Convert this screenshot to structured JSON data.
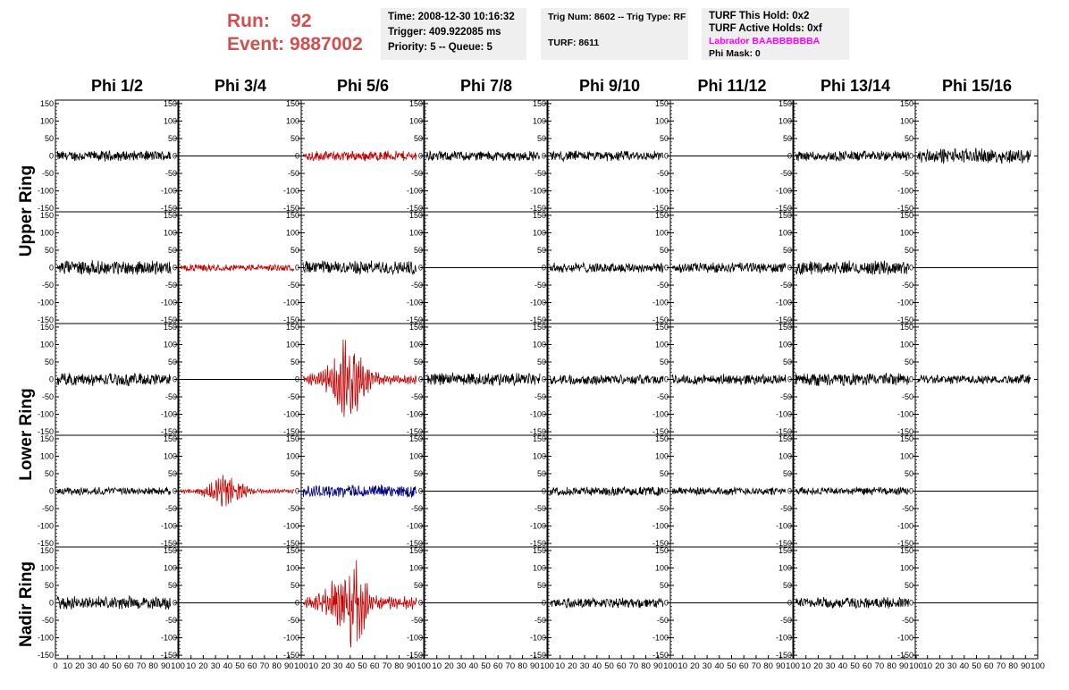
{
  "header": {
    "run_label": "Run:    92",
    "event_label": "Event: 9887002",
    "time": "Time: 2008-12-30 10:16:32",
    "trigger": "Trigger: 409.922085 ms",
    "priority": "Priority: 5 -- Queue: 5",
    "trig_num": "Trig Num: 8602 -- Trig Type: RF",
    "turf": "TURF: 8611",
    "turf_this_hold": "TURF This Hold: 0x2",
    "turf_active_holds": "TURF Active Holds: 0xf",
    "labrador": "Labrador BAABBBBBBA",
    "phi_mask": "Phi Mask: 0"
  },
  "columns": [
    "Phi 1/2",
    "Phi 3/4",
    "Phi 5/6",
    "Phi 7/8",
    "Phi 9/10",
    "Phi 11/12",
    "Phi 13/14",
    "Phi 15/16"
  ],
  "rings": [
    "Upper Ring",
    "Lower Ring",
    "Nadir Ring"
  ],
  "colors": {
    "run": "#d0504f",
    "magenta": "#ff00ff",
    "red": "#c00000",
    "blue": "#000080",
    "black": "#000000"
  },
  "chart_data": {
    "type": "line",
    "title": "",
    "ylim": [
      -160,
      160
    ],
    "xlim": [
      0,
      100
    ],
    "ytick_labels": [
      "150",
      "100",
      "50",
      "0",
      "-50",
      "-100",
      "-150"
    ],
    "xtick_labels": [
      "0",
      "10",
      "20",
      "30",
      "40",
      "50",
      "60",
      "70",
      "80",
      "90",
      "100"
    ],
    "grid": false,
    "rows": [
      {
        "ring": "Upper Ring",
        "cells": [
          {
            "color": "black",
            "amp": 18,
            "flat": false
          },
          {
            "color": "black",
            "amp": 0,
            "flat": true
          },
          {
            "color": "red",
            "amp": 18,
            "flat": false
          },
          {
            "color": "black",
            "amp": 18,
            "flat": false
          },
          {
            "color": "black",
            "amp": 18,
            "flat": false
          },
          {
            "color": "black",
            "amp": 0,
            "flat": true
          },
          {
            "color": "black",
            "amp": 18,
            "flat": false
          },
          {
            "color": "black",
            "amp": 26,
            "flat": false
          }
        ]
      },
      {
        "ring": "Upper Ring",
        "cells": [
          {
            "color": "black",
            "amp": 24,
            "flat": false
          },
          {
            "color": "red",
            "amp": 12,
            "flat": false
          },
          {
            "color": "black",
            "amp": 24,
            "flat": false
          },
          {
            "color": "black",
            "amp": 0,
            "flat": true
          },
          {
            "color": "black",
            "amp": 18,
            "flat": false
          },
          {
            "color": "black",
            "amp": 18,
            "flat": false
          },
          {
            "color": "black",
            "amp": 24,
            "flat": false
          },
          {
            "color": "black",
            "amp": 0,
            "flat": true
          }
        ]
      },
      {
        "ring": "Lower Ring",
        "cells": [
          {
            "color": "black",
            "amp": 22,
            "flat": false
          },
          {
            "color": "black",
            "amp": 0,
            "flat": true
          },
          {
            "color": "red",
            "amp": 110,
            "flat": false,
            "pulse": true
          },
          {
            "color": "black",
            "amp": 22,
            "flat": false
          },
          {
            "color": "black",
            "amp": 18,
            "flat": false
          },
          {
            "color": "black",
            "amp": 18,
            "flat": false
          },
          {
            "color": "black",
            "amp": 22,
            "flat": false
          },
          {
            "color": "black",
            "amp": 16,
            "flat": false
          }
        ]
      },
      {
        "ring": "Lower Ring",
        "cells": [
          {
            "color": "black",
            "amp": 14,
            "flat": false
          },
          {
            "color": "red",
            "amp": 45,
            "flat": false,
            "pulse": true
          },
          {
            "color": "blue",
            "amp": 22,
            "flat": false
          },
          {
            "color": "black",
            "amp": 0,
            "flat": true
          },
          {
            "color": "black",
            "amp": 16,
            "flat": false
          },
          {
            "color": "black",
            "amp": 14,
            "flat": false
          },
          {
            "color": "black",
            "amp": 14,
            "flat": false
          },
          {
            "color": "black",
            "amp": 0,
            "flat": true
          }
        ]
      },
      {
        "ring": "Nadir Ring",
        "cells": [
          {
            "color": "black",
            "amp": 22,
            "flat": false
          },
          {
            "color": "black",
            "amp": 0,
            "flat": true
          },
          {
            "color": "red",
            "amp": 130,
            "flat": false,
            "pulse": true
          },
          {
            "color": "black",
            "amp": 0,
            "flat": true
          },
          {
            "color": "black",
            "amp": 18,
            "flat": false
          },
          {
            "color": "black",
            "amp": 0,
            "flat": true
          },
          {
            "color": "black",
            "amp": 20,
            "flat": false
          },
          {
            "color": "black",
            "amp": 0,
            "flat": true
          }
        ]
      }
    ]
  }
}
